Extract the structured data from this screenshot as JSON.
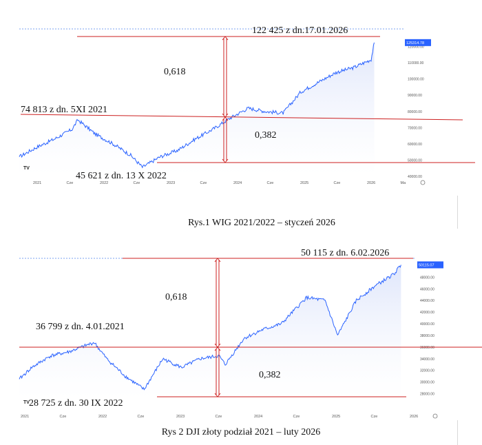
{
  "chart_data": [
    {
      "type": "area",
      "caption": "Rys.1 WIG 2021/2022 – styczeń 2026",
      "x_ticks": [
        "2021",
        "Cze",
        "2022",
        "Cze",
        "2023",
        "Cze",
        "2024",
        "Cze",
        "2025",
        "Cze",
        "2026",
        "Ma"
      ],
      "y_ticks": [
        "120000.00",
        "110000.00",
        "100000.00",
        "90000.00",
        "80000.00",
        "70000.00",
        "60000.00",
        "50000.00",
        "40000.00"
      ],
      "ylim": [
        40000,
        130000
      ],
      "last_price_label": "125314.78",
      "logo": "TV",
      "x": [
        "2021-01",
        "2021-04",
        "2021-07",
        "2021-10",
        "2021-11",
        "2022-02",
        "2022-05",
        "2022-08",
        "2022-10",
        "2023-01",
        "2023-04",
        "2023-07",
        "2023-10",
        "2024-01",
        "2024-04",
        "2024-07",
        "2024-10",
        "2025-01",
        "2025-04",
        "2025-07",
        "2025-10",
        "2026-01",
        "2026-01-17"
      ],
      "values": [
        52000,
        58000,
        63000,
        69000,
        74813,
        66000,
        60000,
        53000,
        45621,
        52000,
        56000,
        63000,
        69000,
        76000,
        82000,
        80000,
        79000,
        92000,
        98000,
        104000,
        107000,
        112000,
        122425
      ],
      "annotations": {
        "high": "122 425 z dn.17.01.2026",
        "mid": "74 813 z dn. 5XI 2021",
        "low": "45 621 z dn. 13 X 2022",
        "fib_upper": "0,618",
        "fib_lower": "0,382"
      },
      "colors": {
        "line": "#2962ff",
        "fill": "#dfe6fb",
        "annotation": "#cc1f1f"
      }
    },
    {
      "type": "area",
      "caption": "Rys 2 DJI złoty podział 2021 – luty 2026",
      "x_ticks": [
        "2021",
        "Cze",
        "2022",
        "Cze",
        "2023",
        "Cze",
        "2024",
        "Cze",
        "2025",
        "Cze",
        "2026"
      ],
      "y_ticks": [
        "48000.00",
        "46000.00",
        "44000.00",
        "42000.00",
        "40000.00",
        "38000.00",
        "36000.00",
        "34000.00",
        "32000.00",
        "30000.00",
        "28000.00"
      ],
      "ylim": [
        27000,
        51000
      ],
      "last_price_label": "50115.07",
      "logo": "TV",
      "x": [
        "2021-01",
        "2021-03",
        "2021-06",
        "2021-09",
        "2022-01",
        "2022-03",
        "2022-06",
        "2022-09",
        "2022-12",
        "2023-03",
        "2023-06",
        "2023-09",
        "2023-10",
        "2024-01",
        "2024-04",
        "2024-07",
        "2024-11",
        "2025-02",
        "2025-04",
        "2025-07",
        "2025-10",
        "2026-01",
        "2026-02-06"
      ],
      "values": [
        30500,
        32500,
        34500,
        35200,
        36799,
        34000,
        31000,
        28725,
        34000,
        32500,
        34000,
        34500,
        33000,
        37500,
        39000,
        40000,
        44500,
        44000,
        38000,
        44000,
        46500,
        48500,
        50115
      ],
      "annotations": {
        "high": "50 115 z dn. 6.02.2026",
        "mid": "36 799 z dn. 4.01.2021",
        "low": "28 725 z dn. 30 IX 2022",
        "fib_upper": "0,618",
        "fib_lower": "0,382"
      },
      "colors": {
        "line": "#2962ff",
        "fill": "#dfe6fb",
        "annotation": "#cc1f1f"
      }
    }
  ]
}
